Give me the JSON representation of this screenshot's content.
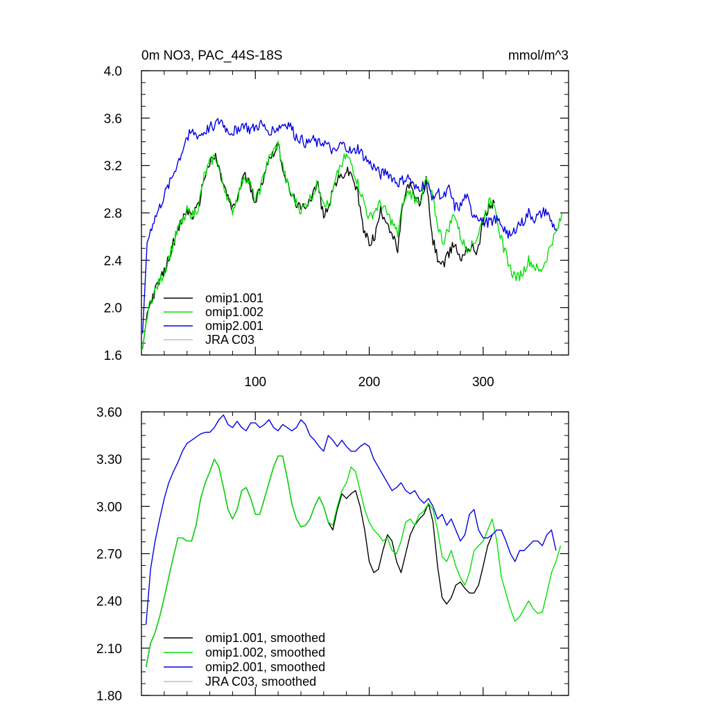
{
  "chart_data": [
    {
      "type": "line",
      "title": "0m NO3, PAC_44S-18S",
      "units": "mmol/m^3",
      "xlabel": "",
      "ylabel": "",
      "xlim": [
        0,
        375
      ],
      "ylim": [
        1.6,
        4.0
      ],
      "x_ticks": [
        100,
        200,
        300
      ],
      "x_tick_labels": [
        "100",
        "200",
        "300"
      ],
      "y_ticks": [
        1.6,
        2.0,
        2.4,
        2.8,
        3.2,
        3.6,
        4.0
      ],
      "y_tick_labels": [
        "1.6",
        "2.0",
        "2.4",
        "2.8",
        "3.2",
        "3.6",
        "4.0"
      ],
      "grid": false,
      "legend_position": "bottom-left",
      "noise": 1,
      "series": [
        {
          "name": "omip1.001",
          "color": "#000000",
          "x": [
            1,
            5,
            10,
            15,
            20,
            25,
            30,
            35,
            40,
            45,
            50,
            55,
            60,
            65,
            70,
            75,
            80,
            85,
            90,
            95,
            100,
            105,
            110,
            115,
            120,
            125,
            130,
            135,
            140,
            145,
            150,
            155,
            160,
            165,
            170,
            175,
            180,
            185,
            190,
            195,
            200,
            205,
            210,
            215,
            220,
            225,
            230,
            235,
            240,
            245,
            250,
            255,
            260,
            265,
            270,
            275,
            280,
            285,
            290,
            295,
            300,
            305,
            310
          ],
          "values": [
            1.65,
            1.95,
            2.1,
            2.2,
            2.3,
            2.45,
            2.6,
            2.72,
            2.82,
            2.78,
            2.85,
            3.1,
            3.22,
            3.28,
            3.1,
            2.95,
            2.82,
            2.95,
            3.12,
            3.05,
            2.9,
            3.02,
            3.22,
            3.3,
            3.38,
            3.15,
            2.98,
            2.9,
            2.82,
            2.88,
            2.95,
            3.05,
            2.75,
            2.9,
            3.05,
            3.1,
            3.15,
            3.12,
            2.95,
            2.65,
            2.55,
            2.6,
            2.82,
            2.75,
            2.62,
            2.48,
            2.9,
            3.05,
            2.92,
            2.88,
            3.08,
            2.6,
            2.42,
            2.35,
            2.45,
            2.55,
            2.4,
            2.5,
            2.5,
            2.48,
            2.72,
            2.85,
            2.88
          ]
        },
        {
          "name": "omip1.002",
          "color": "#00e000",
          "x": [
            1,
            5,
            10,
            15,
            20,
            25,
            30,
            35,
            40,
            45,
            50,
            55,
            60,
            65,
            70,
            75,
            80,
            85,
            90,
            95,
            100,
            105,
            110,
            115,
            120,
            125,
            130,
            135,
            140,
            145,
            150,
            155,
            160,
            165,
            170,
            175,
            180,
            185,
            190,
            195,
            200,
            205,
            210,
            215,
            220,
            225,
            230,
            235,
            240,
            245,
            250,
            255,
            260,
            265,
            270,
            275,
            280,
            285,
            290,
            295,
            300,
            305,
            310,
            315,
            320,
            325,
            330,
            335,
            340,
            345,
            350,
            355,
            360,
            365,
            370
          ],
          "values": [
            1.65,
            1.95,
            2.1,
            2.2,
            2.3,
            2.45,
            2.6,
            2.72,
            2.82,
            2.78,
            2.85,
            3.1,
            3.22,
            3.28,
            3.1,
            2.95,
            2.82,
            2.95,
            3.12,
            3.05,
            2.9,
            3.02,
            3.22,
            3.3,
            3.38,
            3.15,
            2.98,
            2.9,
            2.82,
            2.88,
            2.95,
            3.05,
            2.9,
            2.85,
            3.05,
            3.22,
            3.28,
            3.2,
            3.05,
            2.9,
            2.75,
            2.82,
            2.88,
            2.8,
            2.72,
            2.62,
            2.9,
            2.98,
            2.92,
            2.92,
            3.08,
            2.95,
            2.7,
            2.55,
            2.68,
            2.8,
            2.6,
            2.5,
            2.52,
            2.6,
            2.75,
            2.88,
            2.9,
            2.6,
            2.45,
            2.3,
            2.25,
            2.3,
            2.4,
            2.35,
            2.3,
            2.4,
            2.55,
            2.65,
            2.8
          ]
        },
        {
          "name": "omip2.001",
          "color": "#0000e0",
          "x": [
            1,
            5,
            10,
            15,
            20,
            25,
            30,
            35,
            40,
            45,
            50,
            55,
            60,
            65,
            70,
            75,
            80,
            85,
            90,
            95,
            100,
            105,
            110,
            115,
            120,
            125,
            130,
            135,
            140,
            145,
            150,
            155,
            160,
            165,
            170,
            175,
            180,
            185,
            190,
            195,
            200,
            205,
            210,
            215,
            220,
            225,
            230,
            235,
            240,
            245,
            250,
            255,
            260,
            265,
            270,
            275,
            280,
            285,
            290,
            295,
            300,
            305,
            310,
            315,
            320,
            325,
            330,
            335,
            340,
            345,
            350,
            355,
            360,
            365
          ],
          "values": [
            1.78,
            2.55,
            2.72,
            2.82,
            2.95,
            3.05,
            3.18,
            3.3,
            3.45,
            3.48,
            3.45,
            3.48,
            3.52,
            3.55,
            3.58,
            3.5,
            3.48,
            3.52,
            3.55,
            3.5,
            3.52,
            3.55,
            3.5,
            3.5,
            3.52,
            3.55,
            3.55,
            3.45,
            3.42,
            3.38,
            3.42,
            3.38,
            3.4,
            3.35,
            3.3,
            3.38,
            3.36,
            3.3,
            3.35,
            3.28,
            3.22,
            3.18,
            3.12,
            3.15,
            3.1,
            3.05,
            3.08,
            3.1,
            3.0,
            3.02,
            3.05,
            2.95,
            2.98,
            2.92,
            3.0,
            2.85,
            2.85,
            2.95,
            2.8,
            2.78,
            2.72,
            2.72,
            2.75,
            2.72,
            2.65,
            2.6,
            2.7,
            2.72,
            2.8,
            2.75,
            2.78,
            2.82,
            2.72,
            2.65
          ]
        },
        {
          "name": "JRA C03",
          "color": "#c0c0c0",
          "x": [],
          "values": []
        }
      ]
    },
    {
      "type": "line",
      "title": "",
      "xlabel": "",
      "ylabel": "",
      "xlim": [
        0,
        375
      ],
      "ylim": [
        1.8,
        3.6
      ],
      "x_ticks": [
        100,
        200,
        300
      ],
      "x_tick_labels": [],
      "y_ticks": [
        1.8,
        2.1,
        2.4,
        2.7,
        3.0,
        3.3,
        3.6
      ],
      "y_tick_labels": [
        "1.80",
        "2.10",
        "2.40",
        "2.70",
        "3.00",
        "3.30",
        "3.60"
      ],
      "grid": false,
      "legend_position": "bottom-left",
      "noise": 0,
      "series": [
        {
          "name": "omip1.001, smoothed",
          "color": "#000000",
          "x": [
            4,
            8,
            12,
            16,
            20,
            24,
            28,
            32,
            36,
            40,
            44,
            48,
            52,
            56,
            60,
            64,
            68,
            72,
            76,
            80,
            84,
            88,
            92,
            96,
            100,
            104,
            108,
            112,
            116,
            120,
            124,
            128,
            132,
            136,
            140,
            144,
            148,
            152,
            156,
            160,
            164,
            168,
            172,
            176,
            180,
            184,
            188,
            192,
            196,
            200,
            204,
            208,
            212,
            216,
            220,
            224,
            228,
            232,
            236,
            240,
            244,
            248,
            252,
            256,
            260,
            264,
            268,
            272,
            276,
            280,
            284,
            288,
            292,
            296,
            300,
            304,
            308
          ],
          "values": [
            1.98,
            2.13,
            2.2,
            2.3,
            2.42,
            2.55,
            2.68,
            2.8,
            2.8,
            2.78,
            2.78,
            2.88,
            3.05,
            3.15,
            3.22,
            3.3,
            3.25,
            3.12,
            2.98,
            2.92,
            2.98,
            3.1,
            3.12,
            3.05,
            2.95,
            2.95,
            3.05,
            3.15,
            3.25,
            3.32,
            3.32,
            3.18,
            3.02,
            2.92,
            2.87,
            2.88,
            2.92,
            3.0,
            3.06,
            3.0,
            2.9,
            2.85,
            2.98,
            3.08,
            3.05,
            3.08,
            3.1,
            3.0,
            2.85,
            2.65,
            2.58,
            2.6,
            2.72,
            2.82,
            2.78,
            2.65,
            2.58,
            2.7,
            2.82,
            2.88,
            2.92,
            2.95,
            3.02,
            2.9,
            2.62,
            2.42,
            2.38,
            2.42,
            2.5,
            2.52,
            2.48,
            2.45,
            2.45,
            2.5,
            2.62,
            2.75,
            2.82
          ]
        },
        {
          "name": "omip1.002, smoothed",
          "color": "#00e000",
          "x": [
            4,
            8,
            12,
            16,
            20,
            24,
            28,
            32,
            36,
            40,
            44,
            48,
            52,
            56,
            60,
            64,
            68,
            72,
            76,
            80,
            84,
            88,
            92,
            96,
            100,
            104,
            108,
            112,
            116,
            120,
            124,
            128,
            132,
            136,
            140,
            144,
            148,
            152,
            156,
            160,
            164,
            168,
            172,
            176,
            180,
            184,
            188,
            192,
            196,
            200,
            204,
            208,
            212,
            216,
            220,
            224,
            228,
            232,
            236,
            240,
            244,
            248,
            252,
            256,
            260,
            264,
            268,
            272,
            276,
            280,
            284,
            288,
            292,
            296,
            300,
            304,
            308,
            312,
            316,
            320,
            324,
            328,
            332,
            336,
            340,
            344,
            348,
            352,
            356,
            360,
            364,
            368
          ],
          "values": [
            1.98,
            2.13,
            2.2,
            2.3,
            2.42,
            2.55,
            2.68,
            2.8,
            2.8,
            2.78,
            2.78,
            2.88,
            3.05,
            3.15,
            3.22,
            3.3,
            3.25,
            3.12,
            2.98,
            2.92,
            2.98,
            3.1,
            3.12,
            3.05,
            2.95,
            2.95,
            3.05,
            3.15,
            3.25,
            3.32,
            3.32,
            3.18,
            3.02,
            2.92,
            2.87,
            2.88,
            2.92,
            3.0,
            3.06,
            3.0,
            2.9,
            2.88,
            3.0,
            3.1,
            3.15,
            3.25,
            3.22,
            3.1,
            2.98,
            2.9,
            2.85,
            2.82,
            2.78,
            2.8,
            2.72,
            2.7,
            2.78,
            2.9,
            2.92,
            2.88,
            2.95,
            2.97,
            3.02,
            2.98,
            2.85,
            2.68,
            2.65,
            2.72,
            2.62,
            2.55,
            2.5,
            2.58,
            2.72,
            2.75,
            2.78,
            2.85,
            2.92,
            2.78,
            2.55,
            2.45,
            2.35,
            2.27,
            2.3,
            2.35,
            2.4,
            2.35,
            2.32,
            2.33,
            2.45,
            2.58,
            2.65,
            2.75
          ]
        },
        {
          "name": "omip2.001, smoothed",
          "color": "#0000e0",
          "x": [
            4,
            8,
            12,
            16,
            20,
            24,
            28,
            32,
            36,
            40,
            44,
            48,
            52,
            56,
            60,
            64,
            68,
            72,
            76,
            80,
            84,
            88,
            92,
            96,
            100,
            104,
            108,
            112,
            116,
            120,
            124,
            128,
            132,
            136,
            140,
            144,
            148,
            152,
            156,
            160,
            164,
            168,
            172,
            176,
            180,
            184,
            188,
            192,
            196,
            200,
            204,
            208,
            212,
            216,
            220,
            224,
            228,
            232,
            236,
            240,
            244,
            248,
            252,
            256,
            260,
            264,
            268,
            272,
            276,
            280,
            284,
            288,
            292,
            296,
            300,
            304,
            308,
            312,
            316,
            320,
            324,
            328,
            332,
            336,
            340,
            344,
            348,
            352,
            356,
            360,
            364
          ],
          "values": [
            2.25,
            2.6,
            2.78,
            2.92,
            3.05,
            3.15,
            3.22,
            3.28,
            3.35,
            3.4,
            3.42,
            3.44,
            3.46,
            3.47,
            3.47,
            3.5,
            3.55,
            3.58,
            3.52,
            3.5,
            3.54,
            3.5,
            3.48,
            3.53,
            3.53,
            3.5,
            3.52,
            3.55,
            3.5,
            3.48,
            3.52,
            3.5,
            3.48,
            3.5,
            3.55,
            3.52,
            3.45,
            3.42,
            3.38,
            3.35,
            3.45,
            3.42,
            3.38,
            3.42,
            3.38,
            3.35,
            3.35,
            3.38,
            3.4,
            3.38,
            3.3,
            3.25,
            3.2,
            3.15,
            3.1,
            3.12,
            3.15,
            3.1,
            3.08,
            3.1,
            3.05,
            3.02,
            3.05,
            3.0,
            2.92,
            2.95,
            2.88,
            2.92,
            2.85,
            2.78,
            2.82,
            2.95,
            2.98,
            2.85,
            2.8,
            2.8,
            2.82,
            2.85,
            2.85,
            2.78,
            2.7,
            2.65,
            2.72,
            2.72,
            2.75,
            2.78,
            2.78,
            2.75,
            2.82,
            2.85,
            2.72
          ]
        },
        {
          "name": "JRA C03, smoothed",
          "color": "#c0c0c0",
          "x": [],
          "values": []
        }
      ]
    }
  ]
}
